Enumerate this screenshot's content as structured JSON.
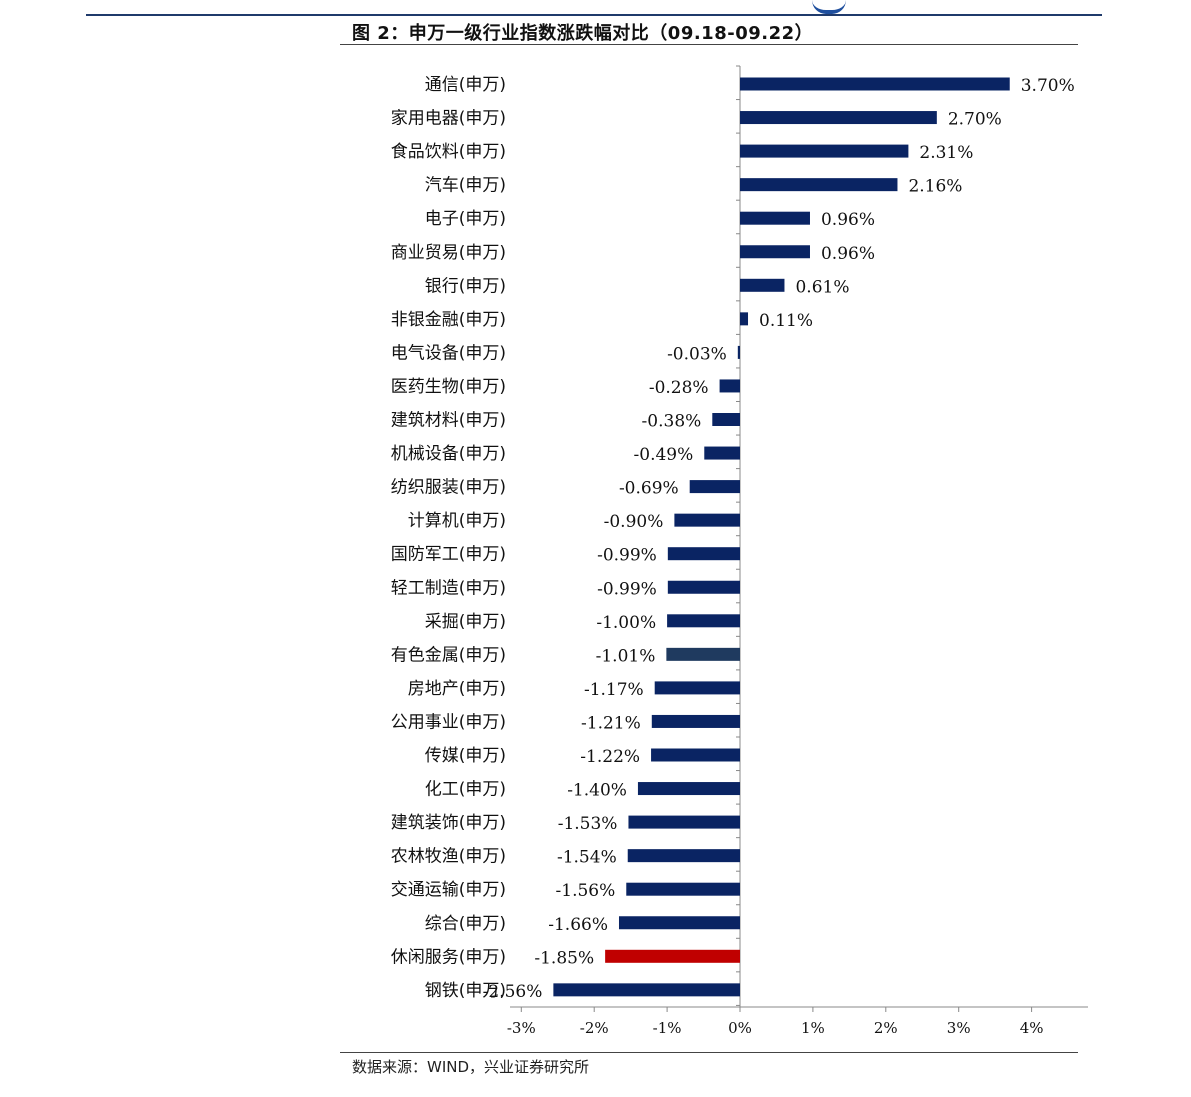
{
  "title": "图 2：申万一级行业指数涨跌幅对比（09.18-09.22）",
  "source": "数据来源：WIND，兴业证券研究所",
  "chart_data": {
    "type": "bar",
    "orientation": "horizontal",
    "categories": [
      "通信(申万)",
      "家用电器(申万)",
      "食品饮料(申万)",
      "汽车(申万)",
      "电子(申万)",
      "商业贸易(申万)",
      "银行(申万)",
      "非银金融(申万)",
      "电气设备(申万)",
      "医药生物(申万)",
      "建筑材料(申万)",
      "机械设备(申万)",
      "纺织服装(申万)",
      "计算机(申万)",
      "国防军工(申万)",
      "轻工制造(申万)",
      "采掘(申万)",
      "有色金属(申万)",
      "房地产(申万)",
      "公用事业(申万)",
      "传媒(申万)",
      "化工(申万)",
      "建筑装饰(申万)",
      "农林牧渔(申万)",
      "交通运输(申万)",
      "综合(申万)",
      "休闲服务(申万)",
      "钢铁(申万)"
    ],
    "values": [
      3.7,
      2.7,
      2.31,
      2.16,
      0.96,
      0.96,
      0.61,
      0.11,
      -0.03,
      -0.28,
      -0.38,
      -0.49,
      -0.69,
      -0.9,
      -0.99,
      -0.99,
      -1.0,
      -1.01,
      -1.17,
      -1.21,
      -1.22,
      -1.4,
      -1.53,
      -1.54,
      -1.56,
      -1.66,
      -1.85,
      -2.56
    ],
    "value_labels": [
      "3.70%",
      "2.70%",
      "2.31%",
      "2.16%",
      "0.96%",
      "0.96%",
      "0.61%",
      "0.11%",
      "-0.03%",
      "-0.28%",
      "-0.38%",
      "-0.49%",
      "-0.69%",
      "-0.90%",
      "-0.99%",
      "-0.99%",
      "-1.00%",
      "-1.01%",
      "-1.17%",
      "-1.21%",
      "-1.22%",
      "-1.40%",
      "-1.53%",
      "-1.54%",
      "-1.56%",
      "-1.66%",
      "-1.85%",
      "-2.56%"
    ],
    "bar_colors": [
      "#0a2463",
      "#0a2463",
      "#0a2463",
      "#0a2463",
      "#0a2463",
      "#0a2463",
      "#0a2463",
      "#0a2463",
      "#0a2463",
      "#0a2463",
      "#0a2463",
      "#0a2463",
      "#0a2463",
      "#0a2463",
      "#0a2463",
      "#0a2463",
      "#0a2463",
      "#1f3a5f",
      "#0a2463",
      "#0a2463",
      "#0a2463",
      "#0a2463",
      "#0a2463",
      "#0a2463",
      "#0a2463",
      "#0a2463",
      "#c00000",
      "#0a2463"
    ],
    "x_ticks": [
      -3,
      -2,
      -1,
      0,
      1,
      2,
      3,
      4
    ],
    "x_tick_labels": [
      "-3%",
      "-2%",
      "-1%",
      "0%",
      "1%",
      "2%",
      "3%",
      "4%"
    ],
    "xlim": [
      -3,
      4.8
    ],
    "xlabel": "",
    "ylabel": "",
    "grid": false,
    "legend": "none"
  }
}
